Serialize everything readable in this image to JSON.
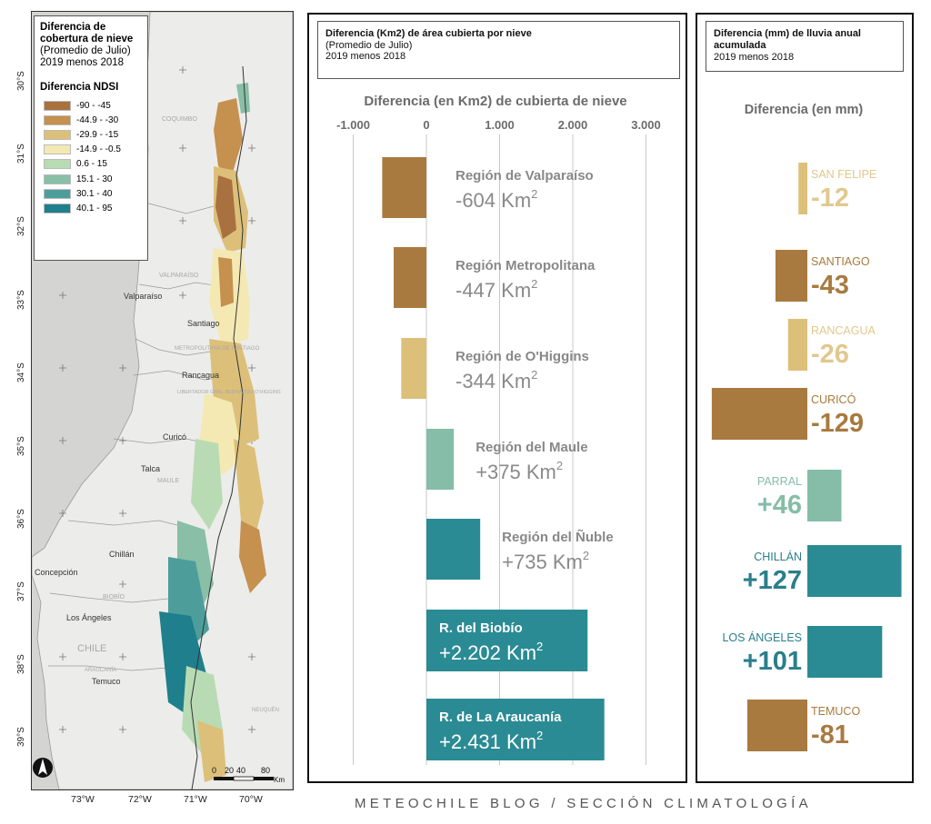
{
  "colors": {
    "brown": "#a87a3f",
    "tan": "#dcc07a",
    "mint": "#86bda8",
    "teal": "#2b8b94"
  },
  "map": {
    "legend": {
      "title": "Diferencia de cobertura de nieve",
      "subtitle": "(Promedio de Julio)",
      "years": "2019 menos 2018",
      "ndsi_title": "Diferencia NDSI",
      "classes": [
        {
          "label": "-90 - -45",
          "color": "#a9713f"
        },
        {
          "label": "-44.9 - -30",
          "color": "#c6904f"
        },
        {
          "label": "-29.9 - -15",
          "color": "#dcc07a"
        },
        {
          "label": "-14.9 - -0.5",
          "color": "#f4e9b2"
        },
        {
          "label": "0.6 - 15",
          "color": "#b9dbb4"
        },
        {
          "label": "15.1 - 30",
          "color": "#88bfa6"
        },
        {
          "label": "30.1 - 40",
          "color": "#4d9e9a"
        },
        {
          "label": "40.1 - 95",
          "color": "#1f7f8c"
        }
      ]
    },
    "lat_labels": [
      "30°S",
      "31°S",
      "32°S",
      "33°S",
      "34°S",
      "35°S",
      "36°S",
      "37°S",
      "38°S",
      "39°S"
    ],
    "lon_labels": [
      "73°W",
      "72°W",
      "71°W",
      "70°W"
    ],
    "places": [
      "Valparaíso",
      "Santiago",
      "Rancagua",
      "Curicó",
      "Talca",
      "Chillán",
      "Concepción",
      "Los Ángeles",
      "Temuco"
    ],
    "regions_faint": [
      "COQUIMBO",
      "VALPARAÍSO",
      "METROPOLITANA DE SANTIAGO",
      "LIBERTADOR GRAL BERNARDO O'HIGGINS",
      "MAULE",
      "BIOBÍO",
      "ARAUCANÍA",
      "CHILE",
      "NEUQUÉN"
    ],
    "scale": {
      "ticks": [
        "0",
        "20",
        "40",
        "80"
      ],
      "unit": "Km"
    }
  },
  "snow_panel": {
    "header_title": "Diferencia (Km2) de área cubierta por nieve",
    "header_sub": "(Promedio de Julio)",
    "header_years": "2019 menos 2018",
    "axis_title": "Diferencia (en Km2) de cubierta de nieve",
    "unit": "Km",
    "unit_exp": "2"
  },
  "rain_panel": {
    "header_title": "Diferencia (mm) de lluvia anual acumulada",
    "header_years": "2019 menos 2018",
    "axis_title": "Diferencia (en mm)"
  },
  "chart_data": [
    {
      "type": "bar",
      "orientation": "horizontal",
      "title": "Diferencia (Km2) de área cubierta por nieve",
      "subtitle": "(Promedio de Julio) 2019 menos 2018",
      "xlabel": "Diferencia (en Km2) de cubierta de nieve",
      "xlim": [
        -1000,
        3000
      ],
      "xticks": [
        "-1.000",
        "0",
        "1.000",
        "2.000",
        "3.000"
      ],
      "grid": true,
      "categories": [
        "Región de Valparaíso",
        "Región Metropolitana",
        "Región de O'Higgins",
        "Región del Maule",
        "Región del Ñuble",
        "R. del Biobío",
        "R. de La Araucanía"
      ],
      "values": [
        -604,
        -447,
        -344,
        375,
        735,
        2202,
        2431
      ],
      "value_labels": [
        "-604",
        "-447",
        "-344",
        "+375",
        "+735",
        "+2.202",
        "+2.431"
      ],
      "bar_colors": [
        "#a87a3f",
        "#a87a3f",
        "#dcc07a",
        "#86bda8",
        "#2b8b94",
        "#2b8b94",
        "#2b8b94"
      ]
    },
    {
      "type": "bar",
      "orientation": "horizontal",
      "title": "Diferencia (mm) de lluvia anual acumulada",
      "subtitle": "2019 menos 2018",
      "xlabel": "Diferencia (en mm)",
      "categories": [
        "SAN FELIPE",
        "SANTIAGO",
        "RANCAGUA",
        "CURICÓ",
        "PARRAL",
        "CHILLÁN",
        "LOS ÁNGELES",
        "TEMUCO"
      ],
      "values": [
        -12,
        -43,
        -26,
        -129,
        46,
        127,
        101,
        -81
      ],
      "value_labels": [
        "-12",
        "-43",
        "-26",
        "-129",
        "+46",
        "+127",
        "+101",
        "-81"
      ],
      "bar_colors": [
        "#dcc07a",
        "#a87a3f",
        "#dcc07a",
        "#a87a3f",
        "#86bda8",
        "#2b8b94",
        "#2b8b94",
        "#a87a3f"
      ]
    }
  ],
  "footer": "METEOCHILE BLOG / SECCIÓN CLIMATOLOGÍA"
}
